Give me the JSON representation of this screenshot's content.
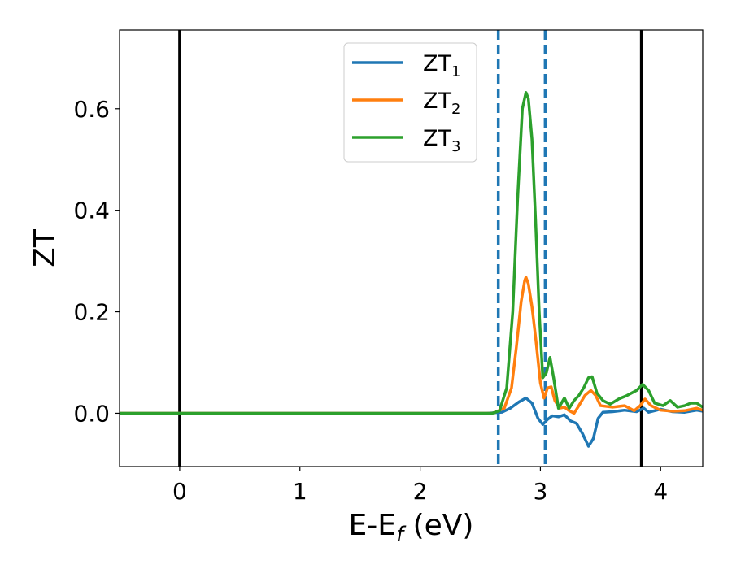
{
  "chart_data": {
    "type": "line",
    "xlabel": "E-E",
    "xlabel_subscript": "f",
    "xlabel_unit": " (eV)",
    "ylabel": "ZT",
    "xlim": [
      -0.5,
      4.35
    ],
    "ylim": [
      -0.105,
      0.755
    ],
    "x_ticks": [
      0,
      1,
      2,
      3,
      4
    ],
    "x_tick_labels": [
      "0",
      "1",
      "2",
      "3",
      "4"
    ],
    "y_ticks": [
      0.0,
      0.2,
      0.4,
      0.6
    ],
    "y_tick_labels": [
      "0.0",
      "0.2",
      "0.4",
      "0.6"
    ],
    "grid": false,
    "legend_position": "top-center",
    "vertical_lines": [
      {
        "x": 0.0,
        "style": "solid",
        "color": "#000000"
      },
      {
        "x": 3.84,
        "style": "solid",
        "color": "#000000"
      },
      {
        "x": 2.65,
        "style": "dashed",
        "color": "#1f77b4"
      },
      {
        "x": 3.04,
        "style": "dashed",
        "color": "#1f77b4"
      }
    ],
    "series": [
      {
        "name": "ZT",
        "name_subscript": "1",
        "color": "#1f77b4",
        "points": [
          [
            -0.5,
            0
          ],
          [
            2.55,
            0
          ],
          [
            2.68,
            0.002
          ],
          [
            2.75,
            0.01
          ],
          [
            2.82,
            0.022
          ],
          [
            2.88,
            0.03
          ],
          [
            2.93,
            0.02
          ],
          [
            2.98,
            -0.01
          ],
          [
            3.02,
            -0.022
          ],
          [
            3.06,
            -0.012
          ],
          [
            3.1,
            -0.005
          ],
          [
            3.15,
            -0.007
          ],
          [
            3.2,
            -0.003
          ],
          [
            3.25,
            -0.015
          ],
          [
            3.3,
            -0.02
          ],
          [
            3.35,
            -0.04
          ],
          [
            3.4,
            -0.065
          ],
          [
            3.44,
            -0.05
          ],
          [
            3.48,
            -0.01
          ],
          [
            3.52,
            0.002
          ],
          [
            3.6,
            0.003
          ],
          [
            3.7,
            0.006
          ],
          [
            3.8,
            0.003
          ],
          [
            3.86,
            0.01
          ],
          [
            3.9,
            0.002
          ],
          [
            3.95,
            0.005
          ],
          [
            4.0,
            0.008
          ],
          [
            4.1,
            0.003
          ],
          [
            4.2,
            0.002
          ],
          [
            4.3,
            0.006
          ],
          [
            4.35,
            0.004
          ]
        ]
      },
      {
        "name": "ZT",
        "name_subscript": "2",
        "color": "#ff7f0e",
        "points": [
          [
            -0.5,
            0
          ],
          [
            2.6,
            0
          ],
          [
            2.7,
            0.01
          ],
          [
            2.76,
            0.05
          ],
          [
            2.8,
            0.13
          ],
          [
            2.84,
            0.22
          ],
          [
            2.87,
            0.262
          ],
          [
            2.88,
            0.268
          ],
          [
            2.9,
            0.255
          ],
          [
            2.93,
            0.21
          ],
          [
            2.96,
            0.15
          ],
          [
            3.0,
            0.06
          ],
          [
            3.03,
            0.03
          ],
          [
            3.06,
            0.05
          ],
          [
            3.09,
            0.052
          ],
          [
            3.12,
            0.025
          ],
          [
            3.16,
            0.01
          ],
          [
            3.2,
            0.012
          ],
          [
            3.24,
            0.005
          ],
          [
            3.28,
            0.0
          ],
          [
            3.32,
            0.015
          ],
          [
            3.37,
            0.035
          ],
          [
            3.42,
            0.045
          ],
          [
            3.46,
            0.035
          ],
          [
            3.5,
            0.015
          ],
          [
            3.6,
            0.012
          ],
          [
            3.7,
            0.015
          ],
          [
            3.78,
            0.005
          ],
          [
            3.83,
            0.015
          ],
          [
            3.87,
            0.028
          ],
          [
            3.92,
            0.015
          ],
          [
            4.0,
            0.006
          ],
          [
            4.1,
            0.004
          ],
          [
            4.2,
            0.005
          ],
          [
            4.3,
            0.01
          ],
          [
            4.35,
            0.006
          ]
        ]
      },
      {
        "name": "ZT",
        "name_subscript": "3",
        "color": "#2ca02c",
        "points": [
          [
            -0.5,
            0
          ],
          [
            2.6,
            0
          ],
          [
            2.66,
            0.005
          ],
          [
            2.72,
            0.05
          ],
          [
            2.77,
            0.2
          ],
          [
            2.81,
            0.42
          ],
          [
            2.85,
            0.6
          ],
          [
            2.88,
            0.632
          ],
          [
            2.9,
            0.62
          ],
          [
            2.93,
            0.54
          ],
          [
            2.96,
            0.38
          ],
          [
            2.99,
            0.2
          ],
          [
            3.02,
            0.07
          ],
          [
            3.05,
            0.08
          ],
          [
            3.08,
            0.11
          ],
          [
            3.11,
            0.07
          ],
          [
            3.15,
            0.01
          ],
          [
            3.2,
            0.03
          ],
          [
            3.24,
            0.01
          ],
          [
            3.28,
            0.025
          ],
          [
            3.32,
            0.035
          ],
          [
            3.36,
            0.05
          ],
          [
            3.4,
            0.07
          ],
          [
            3.43,
            0.072
          ],
          [
            3.47,
            0.04
          ],
          [
            3.52,
            0.025
          ],
          [
            3.58,
            0.018
          ],
          [
            3.65,
            0.028
          ],
          [
            3.72,
            0.035
          ],
          [
            3.8,
            0.045
          ],
          [
            3.85,
            0.057
          ],
          [
            3.9,
            0.045
          ],
          [
            3.95,
            0.02
          ],
          [
            4.02,
            0.015
          ],
          [
            4.08,
            0.025
          ],
          [
            4.14,
            0.012
          ],
          [
            4.2,
            0.015
          ],
          [
            4.25,
            0.02
          ],
          [
            4.3,
            0.02
          ],
          [
            4.35,
            0.012
          ]
        ]
      }
    ]
  }
}
